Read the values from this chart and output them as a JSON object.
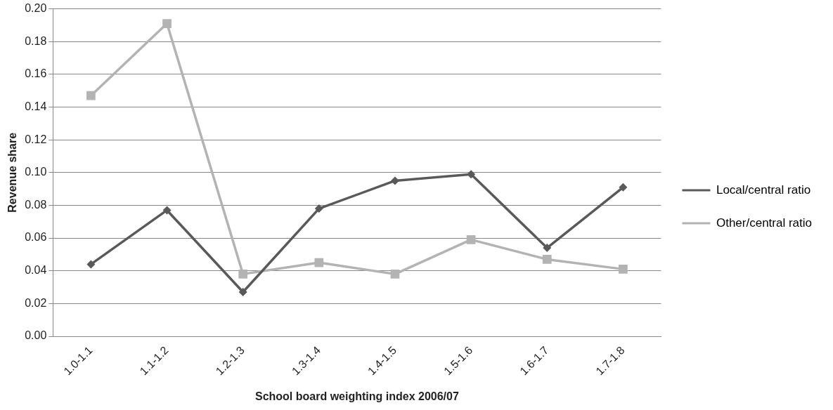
{
  "chart_data": {
    "type": "line",
    "xlabel": "School board weighting index 2006/07",
    "ylabel": "Revenue share",
    "categories": [
      "1.0-1.1",
      "1.1-1.2",
      "1.2-1.3",
      "1.3-1.4",
      "1.4-1.5",
      "1.5-1.6",
      "1.6-1.7",
      "1.7-1.8"
    ],
    "series": [
      {
        "name": "Local/central ratio",
        "color": "#595959",
        "marker": "diamond",
        "values": [
          0.044,
          0.077,
          0.027,
          0.078,
          0.095,
          0.099,
          0.054,
          0.091
        ]
      },
      {
        "name": "Other/central ratio",
        "color": "#b3b3b3",
        "marker": "square",
        "values": [
          0.147,
          0.191,
          0.038,
          0.045,
          0.038,
          0.059,
          0.047,
          0.041
        ]
      }
    ],
    "ylim": [
      0,
      0.2
    ],
    "yticks": [
      {
        "value": 0,
        "label": "0.00"
      },
      {
        "value": 0.02,
        "label": "0.02"
      },
      {
        "value": 0.04,
        "label": "0.04"
      },
      {
        "value": 0.06,
        "label": "0.06"
      },
      {
        "value": 0.08,
        "label": "0.08"
      },
      {
        "value": 0.1,
        "label": "0.10"
      },
      {
        "value": 0.12,
        "label": "0.12"
      },
      {
        "value": 0.14,
        "label": "0.14"
      },
      {
        "value": 0.16,
        "label": "0.16"
      },
      {
        "value": 0.18,
        "label": "0.18"
      },
      {
        "value": 0.2,
        "label": "0.20"
      }
    ],
    "grid": "y",
    "legend": "right",
    "line_style": "solid"
  }
}
